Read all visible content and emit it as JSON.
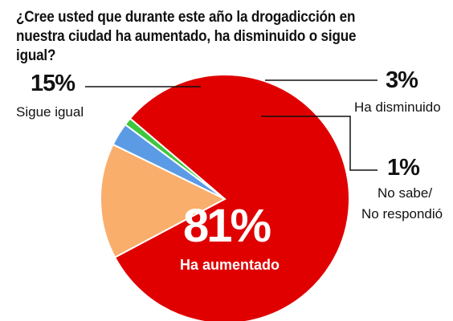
{
  "chart_data": {
    "type": "pie",
    "title": "¿Cree usted que durante este año la drogadicción en nuestra ciudad ha aumentado, ha disminuido o sigue igual?",
    "unit": "%",
    "slices": [
      {
        "label": "Ha aumentado",
        "value": 81,
        "value_label": "81%",
        "color": "#e00000"
      },
      {
        "label": "Sigue igual",
        "value": 15,
        "value_label": "15%",
        "color": "#f9ae6c"
      },
      {
        "label": "Ha disminuido",
        "value": 3,
        "value_label": "3%",
        "color": "#5b9be6"
      },
      {
        "label": "No sabe/ No respondió",
        "label_line1": "No sabe/",
        "label_line2": "No respondió",
        "value": 1,
        "value_label": "1%",
        "color": "#3fc63f"
      }
    ]
  }
}
